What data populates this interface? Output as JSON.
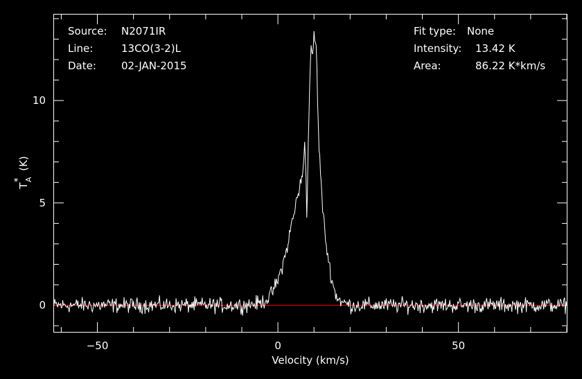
{
  "header": {
    "source_label": "Source:",
    "source_value": "N2071IR",
    "line_label": "Line:",
    "line_value": "13CO(3-2)L",
    "date_label": "Date:",
    "date_value": "02-JAN-2015",
    "fit_label": "Fit type:",
    "fit_value": "None",
    "intensity_label": "Intensity:",
    "intensity_value": "13.42 K",
    "area_label": "Area:",
    "area_value": "86.22 K*km/s"
  },
  "chart_data": {
    "type": "line",
    "title": "",
    "xlabel": "Velocity (km/s)",
    "ylabel_main": "T",
    "ylabel_sub": "A",
    "ylabel_sup": "*",
    "ylabel_unit": "(K)",
    "xlim": [
      -62,
      80
    ],
    "ylim": [
      -1.3,
      14.2
    ],
    "x_ticks": [
      -50,
      0,
      50
    ],
    "x_tick_labels": [
      "−50",
      "0",
      "50"
    ],
    "y_ticks": [
      0,
      5,
      10
    ],
    "y_tick_labels": [
      "0",
      "5",
      "10"
    ],
    "grid": false,
    "baseline": 0,
    "colors": {
      "spectrum": "#ffffff",
      "baseline": "#ff0000",
      "axes": "#ffffff",
      "background": "#000000"
    },
    "series": [
      {
        "x": [
          -60,
          -50,
          -40,
          -30,
          -20,
          -10,
          -5,
          -3,
          -2,
          0,
          2,
          3,
          4,
          4.5,
          5,
          6,
          6.5,
          7,
          7.4,
          7.7,
          8,
          8.3,
          8.7,
          9.2,
          9.7,
          10,
          10.3,
          10.5,
          10.8,
          11.2,
          11.7,
          12.3,
          13,
          14,
          15,
          16,
          17,
          18,
          19,
          20,
          25,
          30,
          40,
          50,
          60,
          70,
          80
        ],
        "y": [
          0,
          0,
          0,
          0,
          0,
          0,
          0.1,
          0.3,
          0.5,
          1.2,
          2.4,
          3.2,
          4.2,
          4.4,
          5.0,
          5.8,
          6.0,
          6.6,
          8.1,
          6.9,
          4.6,
          6.8,
          10.2,
          12.9,
          11.8,
          13.4,
          12.4,
          13.4,
          11.5,
          8.5,
          6.8,
          5.0,
          3.5,
          2.2,
          1.2,
          0.5,
          0.3,
          0.1,
          0.1,
          0,
          0,
          0,
          0,
          0,
          0,
          0,
          0
        ]
      }
    ],
    "noise_rms": 0.18
  }
}
